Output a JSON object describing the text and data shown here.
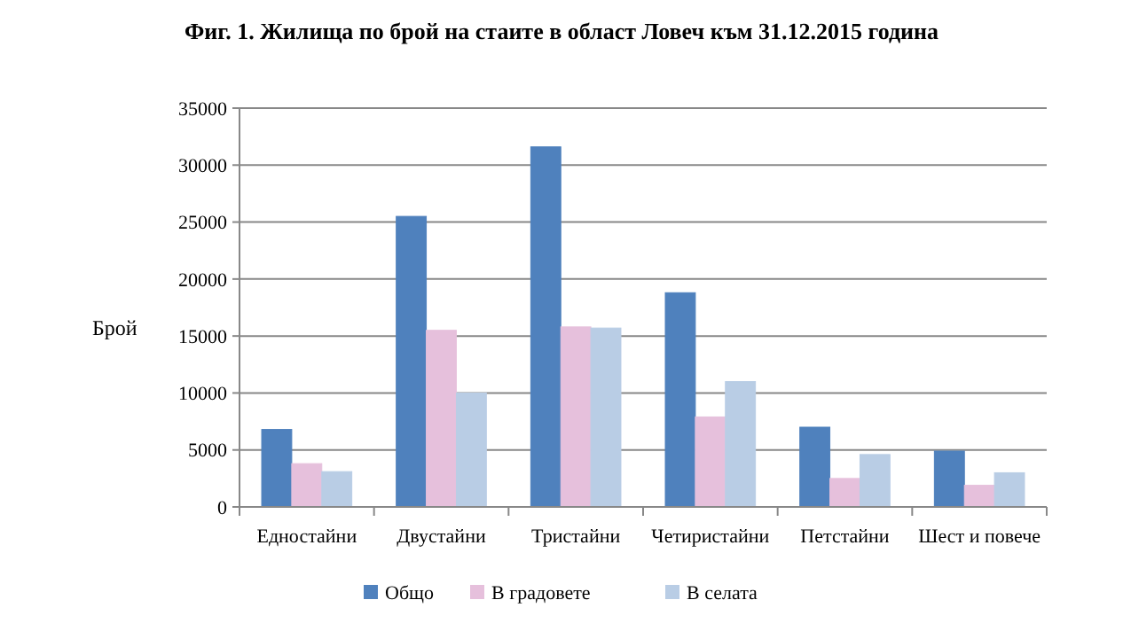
{
  "chart_data": {
    "type": "bar",
    "title": "Фиг. 1. Жилища по брой на стаите в област Ловеч към 31.12.2015 година",
    "ylabel": "Брой",
    "categories": [
      "Едностайни",
      "Двустайни",
      "Тристайни",
      "Четиристайни",
      "Петстайни",
      "Шест и повече"
    ],
    "series": [
      {
        "name": "Общо",
        "color": "#4f81bd",
        "values": [
          6800,
          25500,
          31600,
          18800,
          7000,
          4900
        ]
      },
      {
        "name": "В градовете",
        "color": "#e6c0dc",
        "values": [
          3800,
          15500,
          15800,
          7900,
          2500,
          1900
        ]
      },
      {
        "name": "В селата",
        "color": "#b9cde5",
        "values": [
          3100,
          10000,
          15700,
          11000,
          4600,
          3000
        ]
      }
    ],
    "ylim": [
      0,
      35000
    ],
    "yticks": [
      0,
      5000,
      10000,
      15000,
      20000,
      25000,
      30000,
      35000
    ],
    "grid": "y",
    "legend": "bottom"
  }
}
